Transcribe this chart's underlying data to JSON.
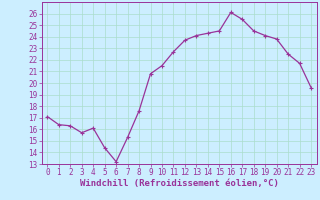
{
  "x": [
    0,
    1,
    2,
    3,
    4,
    5,
    6,
    7,
    8,
    9,
    10,
    11,
    12,
    13,
    14,
    15,
    16,
    17,
    18,
    19,
    20,
    21,
    22,
    23
  ],
  "y": [
    17.1,
    16.4,
    16.3,
    15.7,
    16.1,
    14.4,
    13.2,
    15.3,
    17.6,
    20.8,
    21.5,
    22.7,
    23.7,
    24.1,
    24.3,
    24.5,
    26.1,
    25.5,
    24.5,
    24.1,
    23.8,
    22.5,
    21.7,
    19.6
  ],
  "line_color": "#993399",
  "marker": "+",
  "marker_size": 3.5,
  "background_color": "#cceeff",
  "grid_color": "#aaddcc",
  "xlabel": "Windchill (Refroidissement éolien,°C)",
  "ylabel": "",
  "ylim": [
    13,
    27
  ],
  "xlim": [
    -0.5,
    23.5
  ],
  "yticks": [
    13,
    14,
    15,
    16,
    17,
    18,
    19,
    20,
    21,
    22,
    23,
    24,
    25,
    26
  ],
  "xticks": [
    0,
    1,
    2,
    3,
    4,
    5,
    6,
    7,
    8,
    9,
    10,
    11,
    12,
    13,
    14,
    15,
    16,
    17,
    18,
    19,
    20,
    21,
    22,
    23
  ],
  "tick_color": "#993399",
  "tick_fontsize": 5.5,
  "xlabel_fontsize": 6.5,
  "spine_color": "#993399",
  "linewidth": 0.9,
  "markeredgewidth": 0.8
}
